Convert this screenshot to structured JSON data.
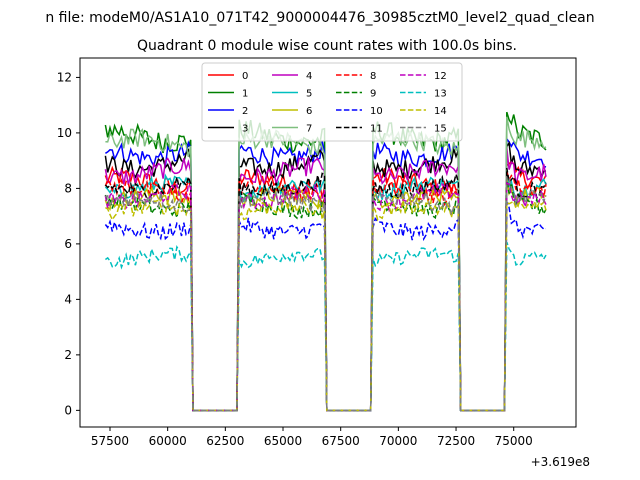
{
  "chart_data": {
    "type": "line",
    "suptitle": "n file: modeM0/AS1A10_071T42_9000004476_30985cztM0_level2_quad_clean",
    "title": "Quadrant 0 module wise count rates with 100.0s bins.",
    "xlabel": "",
    "ylabel": "",
    "x_offset_label": "+3.619e8",
    "xlim": [
      56200,
      77700
    ],
    "ylim": [
      -0.6,
      12.7
    ],
    "x_ticks": [
      57500,
      60000,
      62500,
      65000,
      67500,
      70000,
      72500,
      75000
    ],
    "y_ticks": [
      0,
      2,
      4,
      6,
      8,
      10,
      12
    ],
    "grid": false,
    "legend": {
      "placement": "upper center",
      "columns": 4
    },
    "segments": [
      {
        "start": 57300,
        "end": 61000
      },
      {
        "start": 63100,
        "end": 66800
      },
      {
        "start": 68900,
        "end": 72600
      },
      {
        "start": 74700,
        "end": 76400
      }
    ],
    "gap_level": 0,
    "series": [
      {
        "name": "0",
        "color": "#ff0000",
        "dash": "solid",
        "level": 8.2,
        "noise": 0.35
      },
      {
        "name": "1",
        "color": "#008000",
        "dash": "solid",
        "level": 9.9,
        "noise": 0.4
      },
      {
        "name": "2",
        "color": "#0000ff",
        "dash": "solid",
        "level": 9.3,
        "noise": 0.35
      },
      {
        "name": "3",
        "color": "#000000",
        "dash": "solid",
        "level": 8.9,
        "noise": 0.35
      },
      {
        "name": "4",
        "color": "#bf00bf",
        "dash": "solid",
        "level": 8.6,
        "noise": 0.35
      },
      {
        "name": "5",
        "color": "#00bfbf",
        "dash": "solid",
        "level": 8.0,
        "noise": 0.3
      },
      {
        "name": "6",
        "color": "#bfbf00",
        "dash": "solid",
        "level": 7.6,
        "noise": 0.3
      },
      {
        "name": "7",
        "color": "#7fbf7f",
        "dash": "solid",
        "level": 9.6,
        "noise": 0.35
      },
      {
        "name": "8",
        "color": "#ff0000",
        "dash": "dashed",
        "level": 7.9,
        "noise": 0.3
      },
      {
        "name": "9",
        "color": "#008000",
        "dash": "dashed",
        "level": 7.4,
        "noise": 0.3
      },
      {
        "name": "10",
        "color": "#0000ff",
        "dash": "dashed",
        "level": 6.6,
        "noise": 0.3
      },
      {
        "name": "11",
        "color": "#000000",
        "dash": "dashed",
        "level": 8.1,
        "noise": 0.3
      },
      {
        "name": "12",
        "color": "#bf00bf",
        "dash": "dashed",
        "level": 7.7,
        "noise": 0.3
      },
      {
        "name": "13",
        "color": "#00bfbf",
        "dash": "dashed",
        "level": 5.5,
        "noise": 0.25
      },
      {
        "name": "14",
        "color": "#bfbf00",
        "dash": "dashed",
        "level": 7.2,
        "noise": 0.3
      },
      {
        "name": "15",
        "color": "#7f7f7f",
        "dash": "dashed",
        "level": 7.5,
        "noise": 0.3
      }
    ]
  }
}
